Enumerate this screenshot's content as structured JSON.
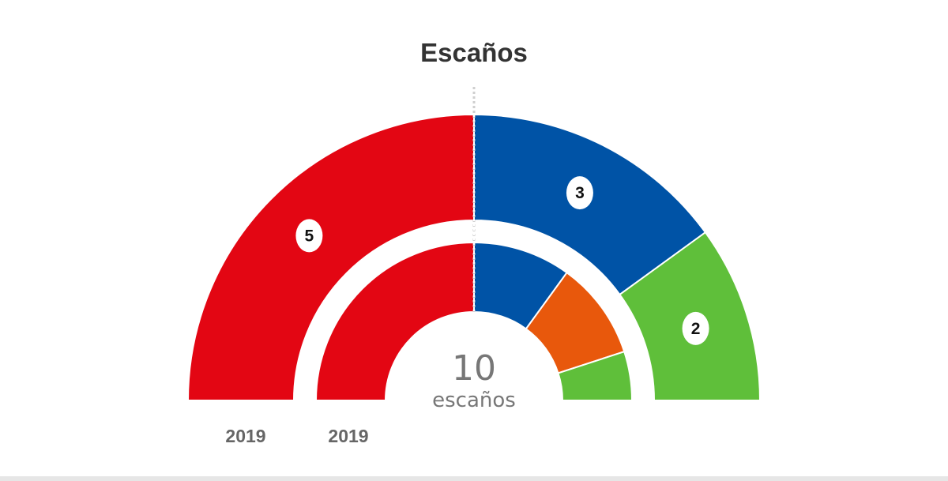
{
  "chart_data": [
    {
      "type": "pie",
      "variant": "semicircle-parliament",
      "title": "Escaños",
      "ring": "outer",
      "year_label": "2019",
      "total_label_number": "10",
      "total_label_unit": "escaños",
      "slices": [
        {
          "value": 5,
          "label": "5",
          "color": "#e30613"
        },
        {
          "value": 3,
          "label": "3",
          "color": "#0053a6"
        },
        {
          "value": 2,
          "label": "2",
          "color": "#5fbf3a"
        }
      ]
    },
    {
      "type": "pie",
      "variant": "semicircle-parliament",
      "ring": "inner",
      "year_label": "2019",
      "slices": [
        {
          "value": 5,
          "color": "#e30613"
        },
        {
          "value": 2,
          "color": "#0053a6"
        },
        {
          "value": 2,
          "color": "#e8580c"
        },
        {
          "value": 1,
          "color": "#5fbf3a"
        }
      ]
    }
  ],
  "majority_line": {
    "color": "#0053a6"
  }
}
